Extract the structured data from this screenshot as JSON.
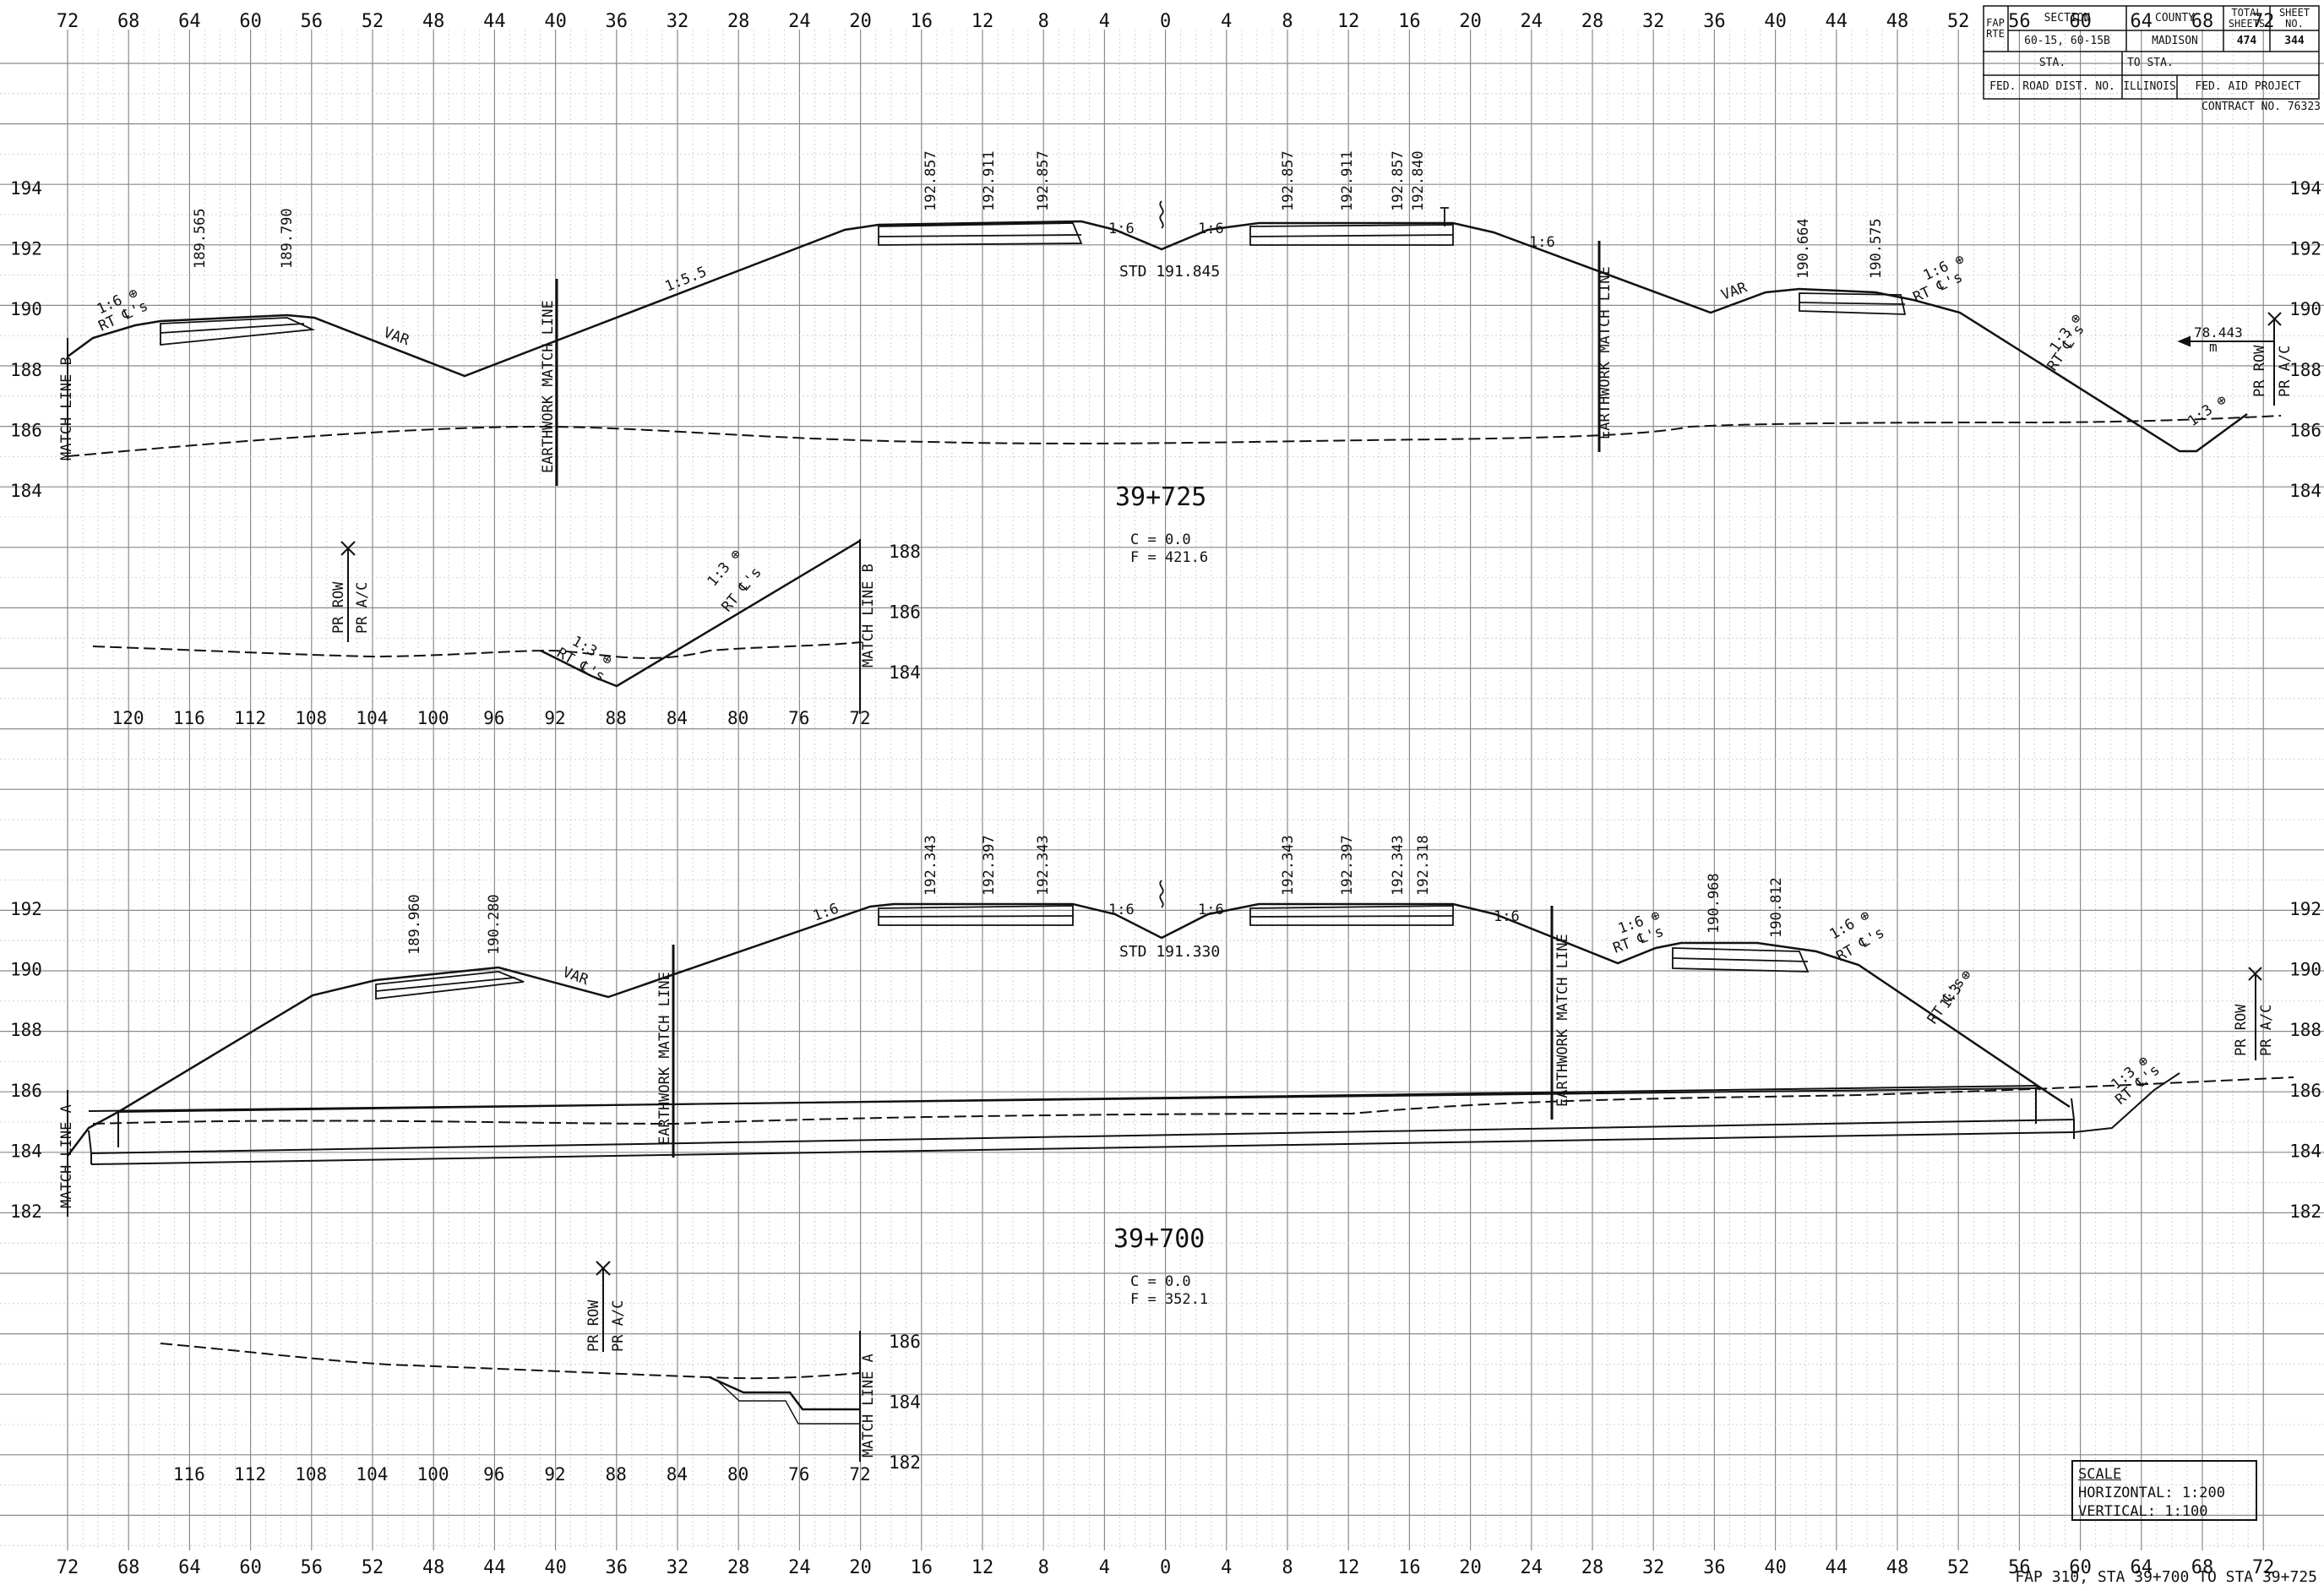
{
  "title_block": {
    "fap_rte": "FAP\nRTE",
    "section_header": "SECTION",
    "county_header": "COUNTY",
    "total_sheets_header": "TOTAL\nSHEETS",
    "sheet_no_header": "SHEET\nNO.",
    "section_value": "60-15, 60-15B",
    "county_value": "MADISON",
    "total_sheets_value": "474",
    "sheet_no_value": "344",
    "sta_label": "STA.",
    "to_sta_label": "TO STA.",
    "fed_road_dist": "FED. ROAD DIST. NO.",
    "state": "ILLINOIS",
    "fed_aid_project": "FED. AID PROJECT",
    "contract": "CONTRACT NO. 76323"
  },
  "scale": {
    "heading": "SCALE",
    "horizontal": "HORIZONTAL:  1:200",
    "vertical": "VERTICAL:  1:100"
  },
  "sheet_caption": "FAP 310, STA 39+700 TO STA 39+725",
  "offset_axis": {
    "labels": [
      "72",
      "68",
      "64",
      "60",
      "56",
      "52",
      "48",
      "44",
      "40",
      "36",
      "32",
      "28",
      "24",
      "20",
      "16",
      "12",
      "8",
      "4",
      "0",
      "4",
      "8",
      "12",
      "16",
      "20",
      "24",
      "28",
      "32",
      "36",
      "40",
      "44",
      "48",
      "52",
      "56",
      "60",
      "64",
      "68",
      "72"
    ]
  },
  "upper_section": {
    "station": "39+725",
    "cut_label": "C = 0.0",
    "fill_label": "F = 421.6",
    "elev_labels": [
      "194",
      "192",
      "190",
      "188",
      "186",
      "184"
    ],
    "ground_std": "STD 191.845",
    "grade_elevations": [
      "189.565",
      "189.790",
      "192.857",
      "192.911",
      "192.857",
      "192.857",
      "192.911",
      "192.857",
      "192.840",
      "190.664",
      "190.575"
    ],
    "slopes": [
      "1:6 ⊕",
      "RT ℄'s",
      "VAR",
      "1:5.5",
      "1:6",
      "1:6",
      "1:6",
      "VAR",
      "1:6 ⊕",
      "RT ℄'s",
      "1:3 ⊕",
      "RT ℄'s",
      "1:3 ⊕"
    ],
    "match_line_left": "MATCH LINE B",
    "earthwork_match_left": "EARTHWORK MATCH LINE",
    "earthwork_match_right": "EARTHWORK MATCH LINE",
    "row_dimension": "78.443",
    "row_dimension_unit": "m",
    "pr_row": "PR ROW",
    "pr_ac": "PR A/C",
    "inset": {
      "elev_labels": [
        "188",
        "186",
        "184"
      ],
      "offset_labels": [
        "120",
        "116",
        "112",
        "108",
        "104",
        "100",
        "96",
        "92",
        "88",
        "84",
        "80",
        "76",
        "72"
      ],
      "match_line": "MATCH LINE B",
      "pr_row": "PR ROW",
      "pr_ac": "PR A/C",
      "slope_a": "1:3 ⊕",
      "slope_a2": "RT ℄'s",
      "slope_b": "1:3 ⊕",
      "slope_b2": "RT ℄'s"
    }
  },
  "lower_section": {
    "station": "39+700",
    "cut_label": "C = 0.0",
    "fill_label": "F = 352.1",
    "elev_labels": [
      "192",
      "190",
      "188",
      "186",
      "184",
      "182"
    ],
    "ground_std": "STD 191.330",
    "grade_elevations": [
      "189.960",
      "190.280",
      "192.343",
      "192.397",
      "192.343",
      "192.343",
      "192.397",
      "192.343",
      "192.318",
      "190.968",
      "190.812"
    ],
    "slopes": [
      "VAR",
      "1:6",
      "1:6",
      "1:6",
      "1:6",
      "1:6 ⊕",
      "RT ℄'s",
      "1:6 ⊕",
      "RT ℄'s",
      "1:3 ⊕",
      "RT ℄'s",
      "1:3 ⊕",
      "RT ℄'s"
    ],
    "match_line_left": "MATCH LINE A",
    "earthwork_match_left": "EARTHWORK MATCH LINE",
    "earthwork_match_right": "EARTHWORK MATCH LINE",
    "pr_row": "PR ROW",
    "pr_ac": "PR A/C",
    "inset": {
      "elev_labels": [
        "186",
        "184",
        "182"
      ],
      "offset_labels": [
        "116",
        "112",
        "108",
        "104",
        "100",
        "96",
        "92",
        "88",
        "84",
        "80",
        "76",
        "72"
      ],
      "match_line": "MATCH LINE A",
      "pr_row": "PR ROW",
      "pr_ac": "PR A/C"
    }
  }
}
